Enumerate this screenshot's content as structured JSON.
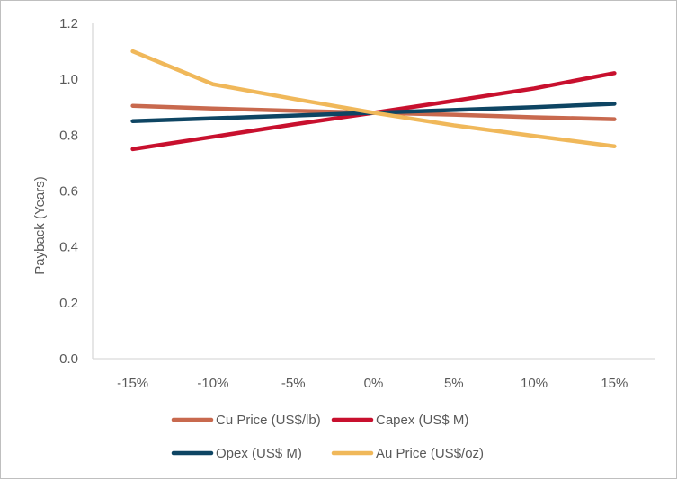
{
  "chart_data": {
    "type": "line",
    "title": "",
    "xlabel": "",
    "ylabel": "Payback (Years)",
    "categories": [
      "-15%",
      "-10%",
      "-5%",
      "0%",
      "5%",
      "10%",
      "15%"
    ],
    "ylim": [
      0,
      1.2
    ],
    "yticks": [
      "0.0",
      "0.2",
      "0.4",
      "0.6",
      "0.8",
      "1.0",
      "1.2"
    ],
    "grid": false,
    "legend_position": "bottom",
    "series": [
      {
        "name": "Cu Price (US$/lb)",
        "color": "#C8694E",
        "values": [
          0.905,
          0.895,
          0.887,
          0.88,
          0.873,
          0.864,
          0.857
        ]
      },
      {
        "name": "Capex (US$ M)",
        "color": "#C8102E",
        "values": [
          0.75,
          0.794,
          0.838,
          0.88,
          0.923,
          0.967,
          1.022
        ]
      },
      {
        "name": "Opex (US$ M)",
        "color": "#0E4563",
        "values": [
          0.85,
          0.86,
          0.87,
          0.88,
          0.89,
          0.9,
          0.912
        ]
      },
      {
        "name": "Au Price (US$/oz)",
        "color": "#F0B85A",
        "values": [
          1.1,
          0.982,
          0.93,
          0.88,
          0.835,
          0.797,
          0.76
        ]
      }
    ]
  }
}
